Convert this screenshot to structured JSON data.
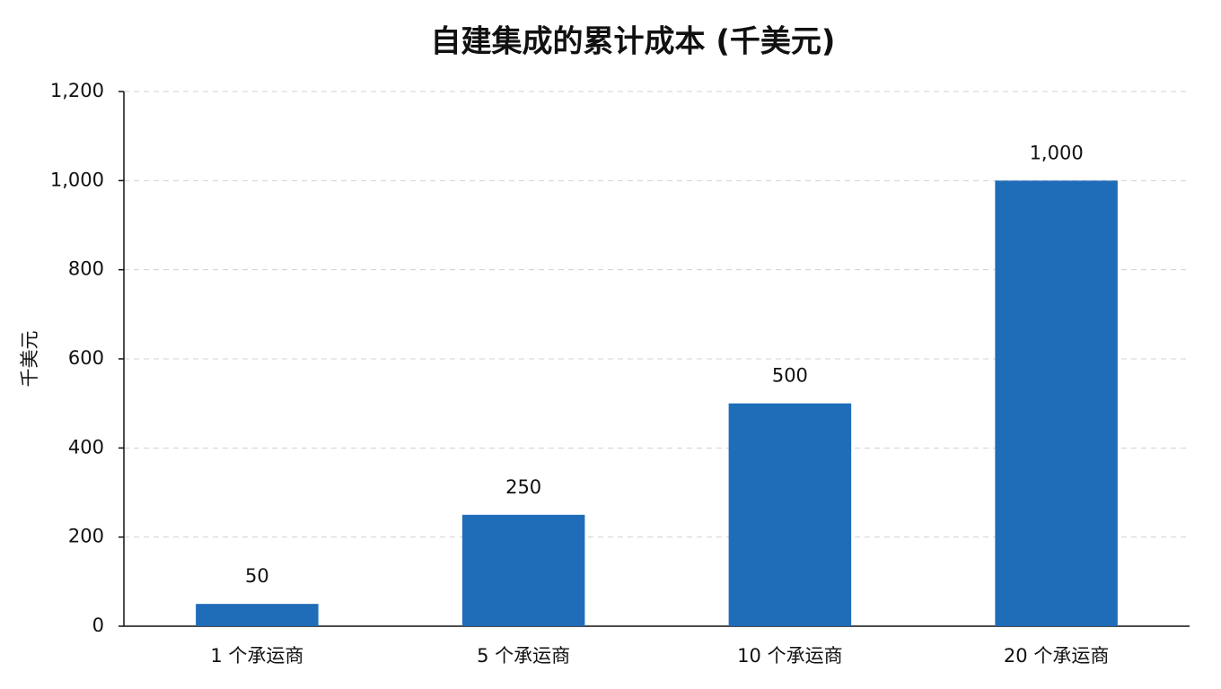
{
  "chart_data": {
    "type": "bar",
    "title": "自建集成的累计成本 (千美元)",
    "y_label": "千美元",
    "categories": [
      "1 个承运商",
      "5 个承运商",
      "10 个承运商",
      "20 个承运商"
    ],
    "values": [
      50,
      250,
      500,
      1000
    ],
    "value_labels": [
      "50",
      "250",
      "500",
      "1,000"
    ],
    "color": "#1f6cb8",
    "ylim": [
      0,
      1200
    ],
    "yticks": [
      0,
      200,
      400,
      600,
      800,
      {
        "value": 1000,
        "label": "1,000"
      },
      {
        "value": 1200,
        "label": "1,200"
      }
    ],
    "grid": true
  }
}
